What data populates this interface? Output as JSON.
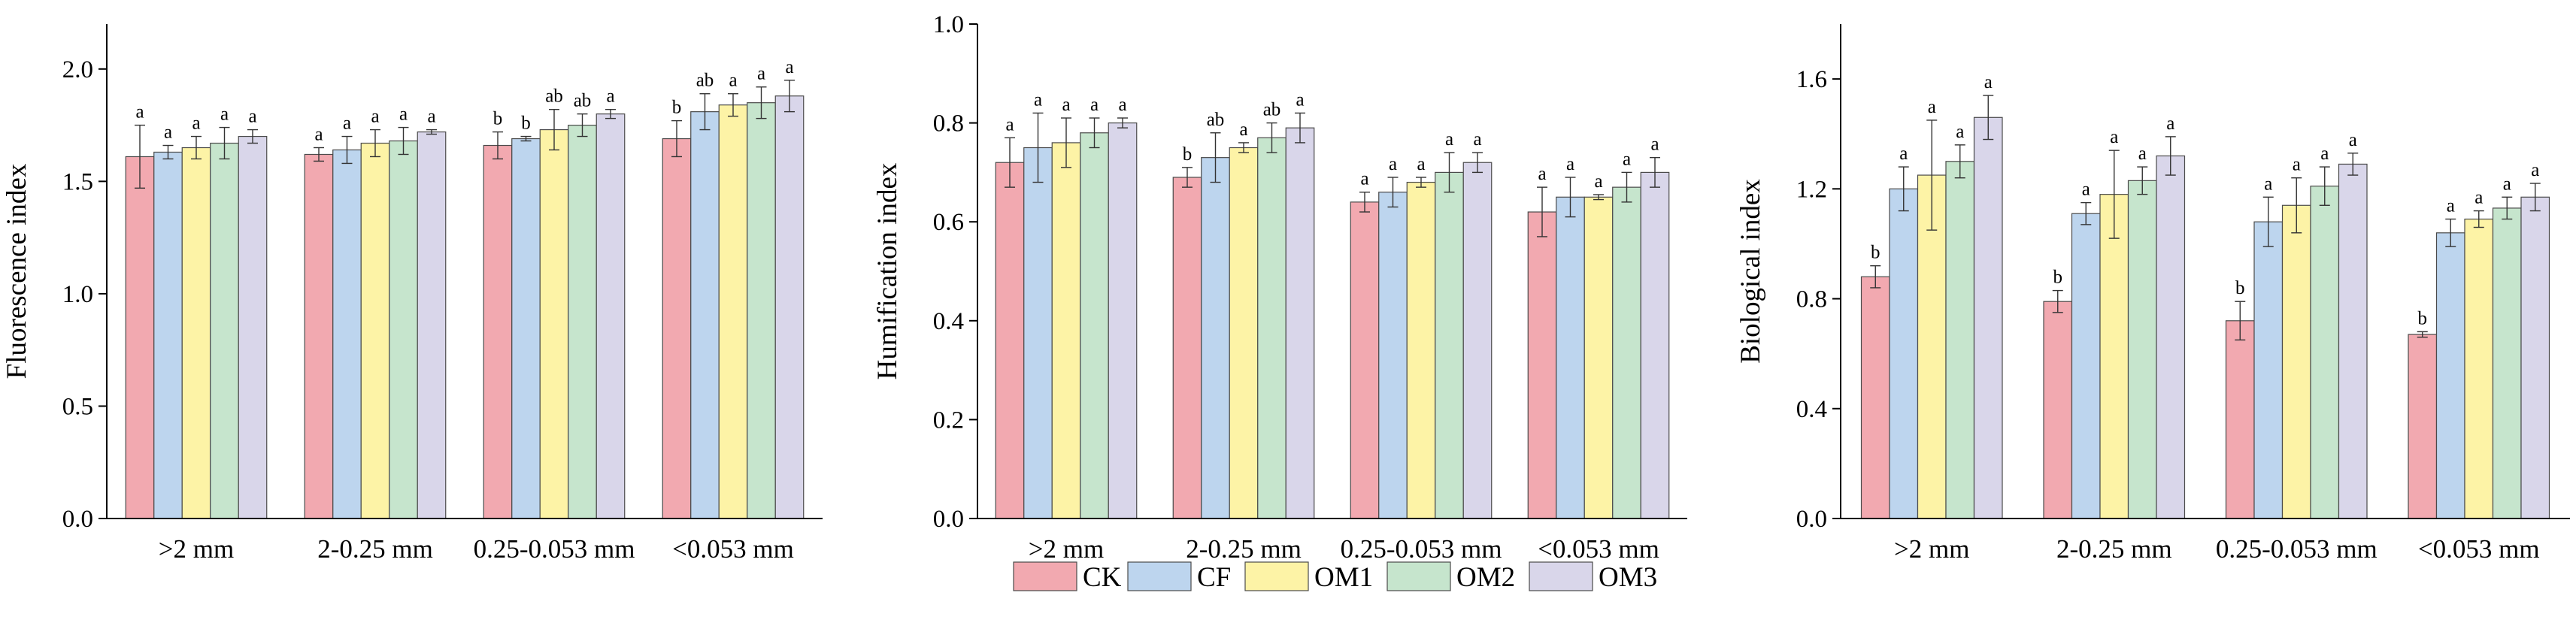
{
  "figure": {
    "legend_placement": "bottom-center"
  },
  "legend": {
    "entries": [
      "CK",
      "CF",
      "OM1",
      "OM2",
      "OM3"
    ]
  },
  "chart_data": [
    {
      "type": "bar",
      "ylabel": "Fluorescence index",
      "xlabel": "",
      "ylim": [
        0,
        2.2
      ],
      "yticks": [
        0.0,
        0.5,
        1.0,
        1.5,
        2.0
      ],
      "ytick_labels": [
        "0.0",
        "0.5",
        "1.0",
        "1.5",
        "2.0"
      ],
      "grid": false,
      "categories": [
        ">2 mm",
        "2-0.25 mm",
        "0.25-0.053 mm",
        "<0.053 mm"
      ],
      "series": [
        {
          "name": "CK",
          "color": "#f2a9b0",
          "values": [
            1.61,
            1.62,
            1.66,
            1.69
          ],
          "errors": [
            0.14,
            0.03,
            0.06,
            0.08
          ],
          "labels": [
            "a",
            "a",
            "b",
            "b"
          ]
        },
        {
          "name": "CF",
          "color": "#bdd5ee",
          "values": [
            1.63,
            1.64,
            1.69,
            1.81
          ],
          "errors": [
            0.03,
            0.06,
            0.01,
            0.08
          ],
          "labels": [
            "a",
            "a",
            "b",
            "ab"
          ]
        },
        {
          "name": "OM1",
          "color": "#fdf3a6",
          "values": [
            1.65,
            1.67,
            1.73,
            1.84
          ],
          "errors": [
            0.05,
            0.06,
            0.09,
            0.05
          ],
          "labels": [
            "a",
            "a",
            "ab",
            "a"
          ]
        },
        {
          "name": "OM2",
          "color": "#c6e5cd",
          "values": [
            1.67,
            1.68,
            1.75,
            1.85
          ],
          "errors": [
            0.07,
            0.06,
            0.05,
            0.07
          ],
          "labels": [
            "a",
            "a",
            "ab",
            "a"
          ]
        },
        {
          "name": "OM3",
          "color": "#d9d6ea",
          "values": [
            1.7,
            1.72,
            1.8,
            1.88
          ],
          "errors": [
            0.03,
            0.01,
            0.02,
            0.07
          ],
          "labels": [
            "a",
            "a",
            "a",
            "a"
          ]
        }
      ]
    },
    {
      "type": "bar",
      "ylabel": "Humification index",
      "xlabel": "",
      "ylim": [
        0,
        1.0
      ],
      "yticks": [
        0.0,
        0.2,
        0.4,
        0.6,
        0.8,
        1.0
      ],
      "ytick_labels": [
        "0.0",
        "0.2",
        "0.4",
        "0.6",
        "0.8",
        "1.0"
      ],
      "grid": false,
      "categories": [
        ">2 mm",
        "2-0.25 mm",
        "0.25-0.053 mm",
        "<0.053 mm"
      ],
      "series": [
        {
          "name": "CK",
          "color": "#f2a9b0",
          "values": [
            0.72,
            0.69,
            0.64,
            0.62
          ],
          "errors": [
            0.05,
            0.02,
            0.02,
            0.05
          ],
          "labels": [
            "a",
            "b",
            "a",
            "a"
          ]
        },
        {
          "name": "CF",
          "color": "#bdd5ee",
          "values": [
            0.75,
            0.73,
            0.66,
            0.65
          ],
          "errors": [
            0.07,
            0.05,
            0.03,
            0.04
          ],
          "labels": [
            "a",
            "ab",
            "a",
            "a"
          ]
        },
        {
          "name": "OM1",
          "color": "#fdf3a6",
          "values": [
            0.76,
            0.75,
            0.68,
            0.65
          ],
          "errors": [
            0.05,
            0.01,
            0.01,
            0.005
          ],
          "labels": [
            "a",
            "a",
            "a",
            "a"
          ]
        },
        {
          "name": "OM2",
          "color": "#c6e5cd",
          "values": [
            0.78,
            0.77,
            0.7,
            0.67
          ],
          "errors": [
            0.03,
            0.03,
            0.04,
            0.03
          ],
          "labels": [
            "a",
            "ab",
            "a",
            "a"
          ]
        },
        {
          "name": "OM3",
          "color": "#d9d6ea",
          "values": [
            0.8,
            0.79,
            0.72,
            0.7
          ],
          "errors": [
            0.01,
            0.03,
            0.02,
            0.03
          ],
          "labels": [
            "a",
            "a",
            "a",
            "a"
          ]
        }
      ]
    },
    {
      "type": "bar",
      "ylabel": "Biological index",
      "xlabel": "",
      "ylim": [
        0,
        1.8
      ],
      "yticks": [
        0.0,
        0.4,
        0.8,
        1.2,
        1.6
      ],
      "ytick_labels": [
        "0.0",
        "0.4",
        "0.8",
        "1.2",
        "1.6"
      ],
      "grid": false,
      "categories": [
        ">2 mm",
        "2-0.25 mm",
        "0.25-0.053 mm",
        "<0.053 mm"
      ],
      "series": [
        {
          "name": "CK",
          "color": "#f2a9b0",
          "values": [
            0.88,
            0.79,
            0.72,
            0.67
          ],
          "errors": [
            0.04,
            0.04,
            0.07,
            0.01
          ],
          "labels": [
            "b",
            "b",
            "b",
            "b"
          ]
        },
        {
          "name": "CF",
          "color": "#bdd5ee",
          "values": [
            1.2,
            1.11,
            1.08,
            1.04
          ],
          "errors": [
            0.08,
            0.04,
            0.09,
            0.05
          ],
          "labels": [
            "a",
            "a",
            "a",
            "a"
          ]
        },
        {
          "name": "OM1",
          "color": "#fdf3a6",
          "values": [
            1.25,
            1.18,
            1.14,
            1.09
          ],
          "errors": [
            0.2,
            0.16,
            0.1,
            0.03
          ],
          "labels": [
            "a",
            "a",
            "a",
            "a"
          ]
        },
        {
          "name": "OM2",
          "color": "#c6e5cd",
          "values": [
            1.3,
            1.23,
            1.21,
            1.13
          ],
          "errors": [
            0.06,
            0.05,
            0.07,
            0.04
          ],
          "labels": [
            "a",
            "a",
            "a",
            "a"
          ]
        },
        {
          "name": "OM3",
          "color": "#d9d6ea",
          "values": [
            1.46,
            1.32,
            1.29,
            1.17
          ],
          "errors": [
            0.08,
            0.07,
            0.04,
            0.05
          ],
          "labels": [
            "a",
            "a",
            "a",
            "a"
          ]
        }
      ]
    }
  ]
}
